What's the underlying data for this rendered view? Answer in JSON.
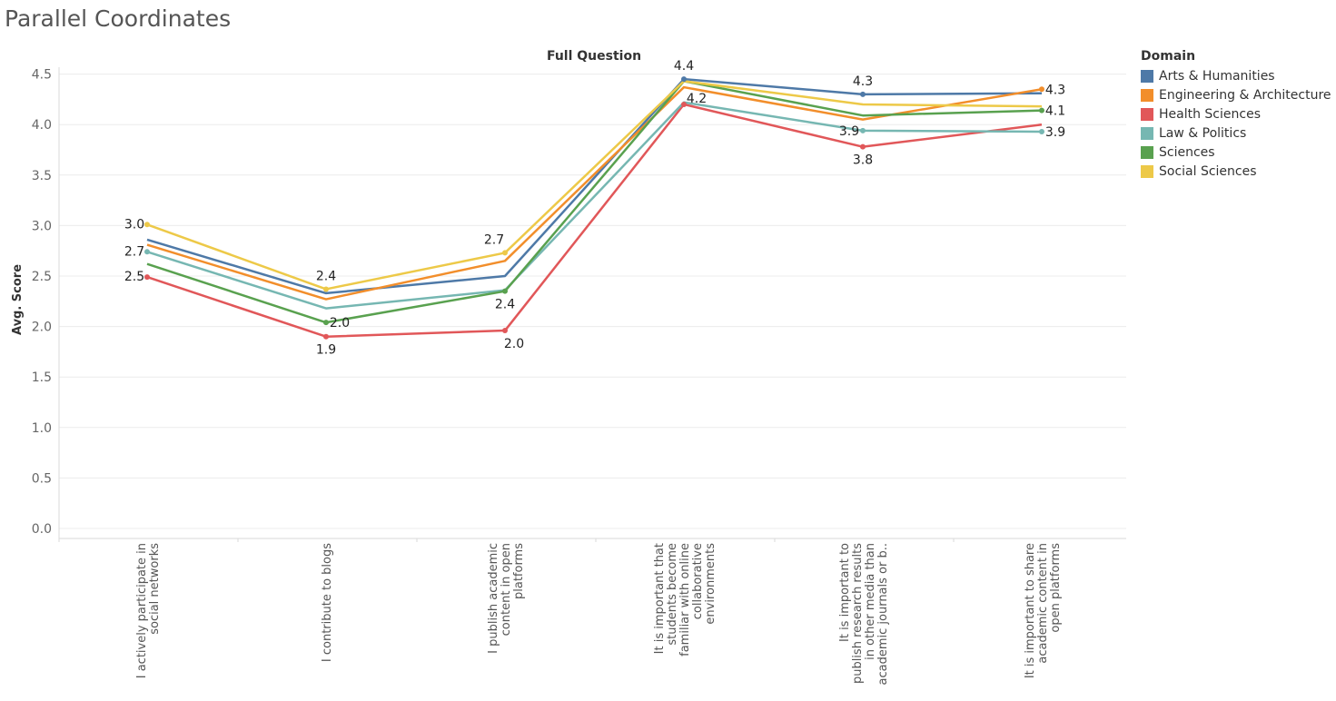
{
  "page_title": "Parallel Coordinates",
  "legend": {
    "title": "Domain",
    "items": [
      {
        "label": "Arts & Humanities",
        "color": "#4e79a7"
      },
      {
        "label": "Engineering & Architecture",
        "color": "#f28e2b"
      },
      {
        "label": "Health Sciences",
        "color": "#e15759"
      },
      {
        "label": "Law & Politics",
        "color": "#76b7b2"
      },
      {
        "label": "Sciences",
        "color": "#59a14f"
      },
      {
        "label": "Social Sciences",
        "color": "#edc948"
      }
    ]
  },
  "chart_data": {
    "type": "line",
    "title": "Full Question",
    "xlabel": "",
    "ylabel": "Avg. Score",
    "ylim": [
      0,
      4.7
    ],
    "yticks": [
      "0.0",
      "0.5",
      "1.0",
      "1.5",
      "2.0",
      "2.5",
      "3.0",
      "3.5",
      "4.0",
      "4.5"
    ],
    "grid": true,
    "legend_position": "right",
    "categories": [
      [
        "I actively participate in",
        "social networks"
      ],
      [
        "I contribute to blogs"
      ],
      [
        "I publish academic",
        "content in open",
        "platforms"
      ],
      [
        "It is important that",
        "students become",
        "familiar with online",
        "collaborative",
        "environments"
      ],
      [
        "It is important to",
        "publish research results",
        "in other media than",
        "academic journals or b.."
      ],
      [
        "It is important to share",
        "academic content in",
        "open platforms"
      ]
    ],
    "series": [
      {
        "name": "Arts & Humanities",
        "color": "#4e79a7",
        "values": [
          2.86,
          2.33,
          2.5,
          4.45,
          4.3,
          4.31
        ]
      },
      {
        "name": "Engineering & Architecture",
        "color": "#f28e2b",
        "values": [
          2.81,
          2.27,
          2.65,
          4.37,
          4.05,
          4.35
        ]
      },
      {
        "name": "Health Sciences",
        "color": "#e15759",
        "values": [
          2.49,
          1.9,
          1.96,
          4.2,
          3.78,
          4.0
        ]
      },
      {
        "name": "Law & Politics",
        "color": "#76b7b2",
        "values": [
          2.74,
          2.18,
          2.36,
          4.22,
          3.94,
          3.93
        ]
      },
      {
        "name": "Sciences",
        "color": "#59a14f",
        "values": [
          2.62,
          2.04,
          2.35,
          4.43,
          4.09,
          4.14
        ]
      },
      {
        "name": "Social Sciences",
        "color": "#edc948",
        "values": [
          3.01,
          2.37,
          2.73,
          4.43,
          4.2,
          4.18
        ]
      }
    ],
    "data_labels": [
      {
        "series": 5,
        "index": 0,
        "text": "3.0"
      },
      {
        "series": 3,
        "index": 0,
        "text": "2.7"
      },
      {
        "series": 2,
        "index": 0,
        "text": "2.5"
      },
      {
        "series": 5,
        "index": 1,
        "text": "2.4"
      },
      {
        "series": 4,
        "index": 1,
        "text": "2.0"
      },
      {
        "series": 2,
        "index": 1,
        "text": "1.9"
      },
      {
        "series": 5,
        "index": 2,
        "text": "2.7"
      },
      {
        "series": 4,
        "index": 2,
        "text": "2.4"
      },
      {
        "series": 2,
        "index": 2,
        "text": "2.0"
      },
      {
        "series": 0,
        "index": 3,
        "text": "4.4"
      },
      {
        "series": 2,
        "index": 3,
        "text": "4.2"
      },
      {
        "series": 0,
        "index": 4,
        "text": "4.3"
      },
      {
        "series": 3,
        "index": 4,
        "text": "3.9"
      },
      {
        "series": 2,
        "index": 4,
        "text": "3.8"
      },
      {
        "series": 1,
        "index": 5,
        "text": "4.3"
      },
      {
        "series": 4,
        "index": 5,
        "text": "4.1"
      },
      {
        "series": 3,
        "index": 5,
        "text": "3.9"
      }
    ]
  }
}
